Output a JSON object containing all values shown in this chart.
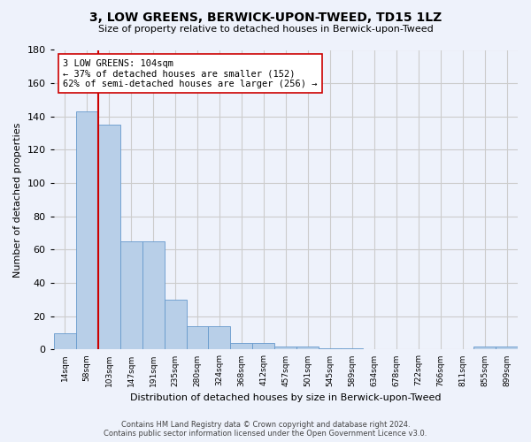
{
  "title": "3, LOW GREENS, BERWICK-UPON-TWEED, TD15 1LZ",
  "subtitle": "Size of property relative to detached houses in Berwick-upon-Tweed",
  "xlabel": "Distribution of detached houses by size in Berwick-upon-Tweed",
  "ylabel": "Number of detached properties",
  "categories": [
    "14sqm",
    "58sqm",
    "103sqm",
    "147sqm",
    "191sqm",
    "235sqm",
    "280sqm",
    "324sqm",
    "368sqm",
    "412sqm",
    "457sqm",
    "501sqm",
    "545sqm",
    "589sqm",
    "634sqm",
    "678sqm",
    "722sqm",
    "766sqm",
    "811sqm",
    "855sqm",
    "899sqm"
  ],
  "values": [
    10,
    143,
    135,
    65,
    65,
    30,
    14,
    14,
    4,
    4,
    2,
    2,
    1,
    1,
    0,
    0,
    0,
    0,
    0,
    2,
    2
  ],
  "bar_color": "#b8cfe8",
  "bar_edge_color": "#6699cc",
  "grid_color": "#cccccc",
  "background_color": "#eef2fb",
  "vline_color": "#cc0000",
  "vline_x": 1.5,
  "annotation_text": "3 LOW GREENS: 104sqm\n← 37% of detached houses are smaller (152)\n62% of semi-detached houses are larger (256) →",
  "annotation_box_color": "white",
  "annotation_box_edge_color": "#cc0000",
  "ylim": [
    0,
    180
  ],
  "yticks": [
    0,
    20,
    40,
    60,
    80,
    100,
    120,
    140,
    160,
    180
  ],
  "footer_line1": "Contains HM Land Registry data © Crown copyright and database right 2024.",
  "footer_line2": "Contains public sector information licensed under the Open Government Licence v3.0."
}
